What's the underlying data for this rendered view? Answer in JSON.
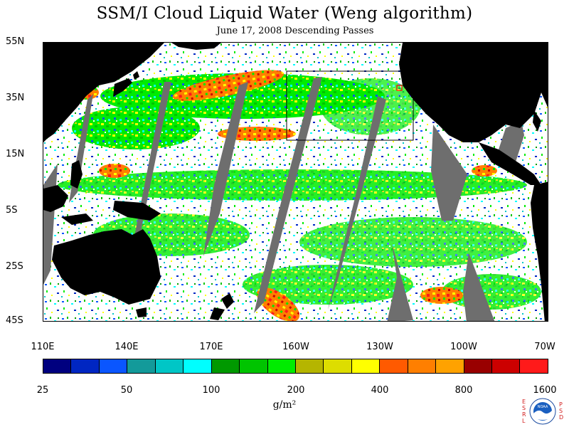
{
  "title": "SSM/I Cloud Liquid Water (Weng algorithm)",
  "subtitle": "June 17, 2008  Descending Passes",
  "map": {
    "projection": "equirectangular",
    "lat_range": [
      "45S",
      "55N"
    ],
    "lon_range": [
      "110E",
      "70W"
    ],
    "lat_labels": [
      "55N",
      "35N",
      "15N",
      "5S",
      "25S",
      "45S"
    ],
    "lon_labels": [
      "110E",
      "140E",
      "170E",
      "160W",
      "130W",
      "100W",
      "70W"
    ],
    "land_color": "#000000",
    "no_data_color": "#6e6e6e",
    "clear_color": "#ffffff",
    "highlight_box_color": "#000000",
    "marker_color": "#ff0000"
  },
  "colorbar": {
    "colors": [
      "#00007f",
      "#0026c2",
      "#0a56ff",
      "#139a9a",
      "#00c6c6",
      "#00fefe",
      "#009900",
      "#00c400",
      "#00ec00",
      "#b5b500",
      "#dddd00",
      "#ffff00",
      "#ff5a00",
      "#ff7f00",
      "#ffa200",
      "#990000",
      "#cc0000",
      "#ff1a1a"
    ],
    "labels": [
      "25",
      "50",
      "100",
      "200",
      "400",
      "800",
      "1600"
    ],
    "units": "g/m²"
  },
  "logo": {
    "name": "noaa-logo",
    "text": "NOAA",
    "side_left": "ESRL",
    "side_right": "PSD"
  }
}
